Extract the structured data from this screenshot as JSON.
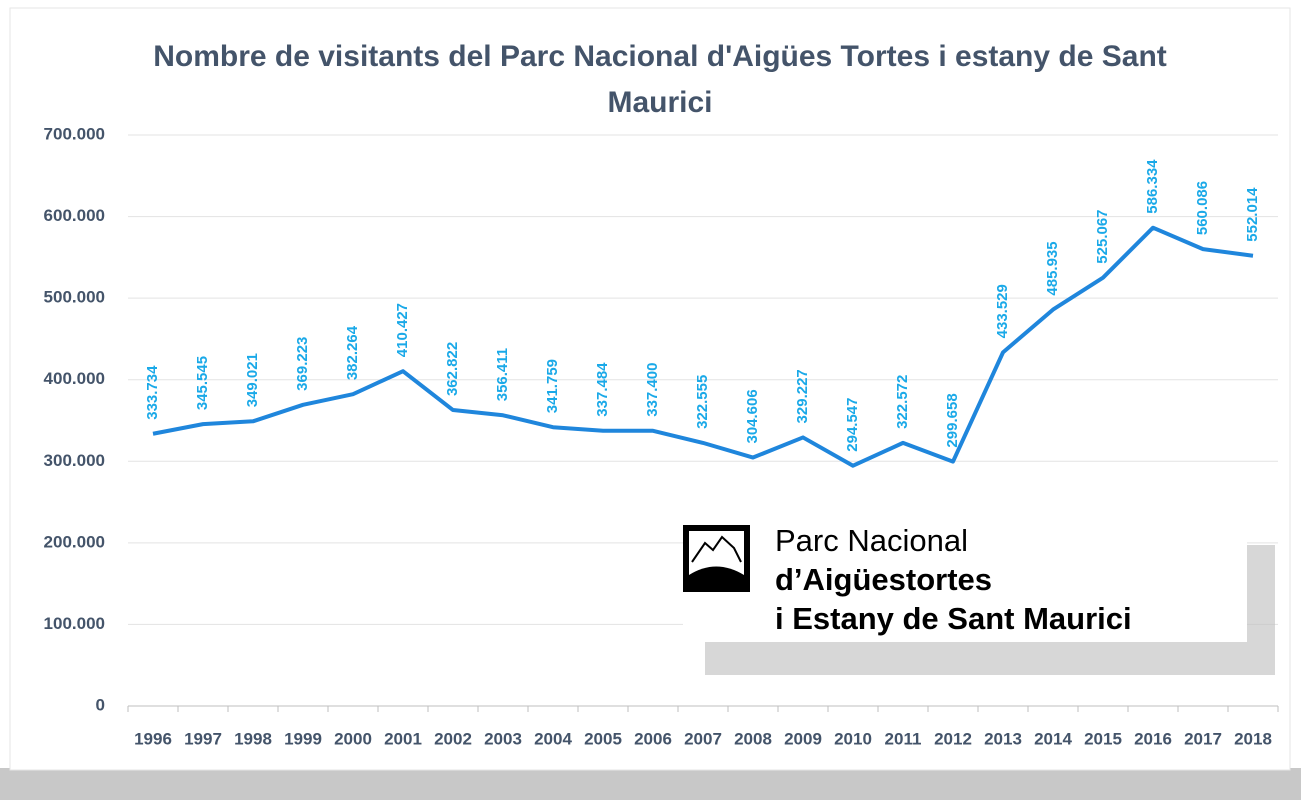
{
  "chart_data": {
    "type": "line",
    "title": "Nombre de visitants del Parc Nacional d'Aigües Tortes i estany de Sant Maurici",
    "categories": [
      "1996",
      "1997",
      "1998",
      "1999",
      "2000",
      "2001",
      "2002",
      "2003",
      "2004",
      "2005",
      "2006",
      "2007",
      "2008",
      "2009",
      "2010",
      "2011",
      "2012",
      "2013",
      "2014",
      "2015",
      "2016",
      "2017",
      "2018"
    ],
    "values": [
      333734,
      345545,
      349021,
      369223,
      382264,
      410427,
      362822,
      356411,
      341759,
      337484,
      337400,
      322555,
      304606,
      329227,
      294547,
      322572,
      299658,
      433529,
      485935,
      525067,
      586334,
      560086,
      552014
    ],
    "value_labels": [
      "333.734",
      "345.545",
      "349.021",
      "369.223",
      "382.264",
      "410.427",
      "362.822",
      "356.411",
      "341.759",
      "337.484",
      "337.400",
      "322.555",
      "304.606",
      "329.227",
      "294.547",
      "322.572",
      "299.658",
      "433.529",
      "485.935",
      "525.067",
      "586.334",
      "560.086",
      "552.014"
    ],
    "color": "#1f86dc",
    "label_color": "#1aa9e8",
    "ylim": [
      0,
      700000
    ],
    "yticks": [
      0,
      {
        "value": 100000,
        "label": "100.000"
      },
      {
        "value": 200000,
        "label": "200.000"
      },
      {
        "value": 300000,
        "label": "300.000"
      },
      {
        "value": 400000,
        "label": "400.000"
      },
      {
        "value": 500000,
        "label": "500.000"
      },
      {
        "value": 600000,
        "label": "600.000"
      },
      {
        "value": 700000,
        "label": "700.000"
      }
    ],
    "grid": true,
    "logo_text": [
      "Parc Nacional",
      "d’Aigüestortes",
      "i Estany de Sant Maurici"
    ]
  }
}
